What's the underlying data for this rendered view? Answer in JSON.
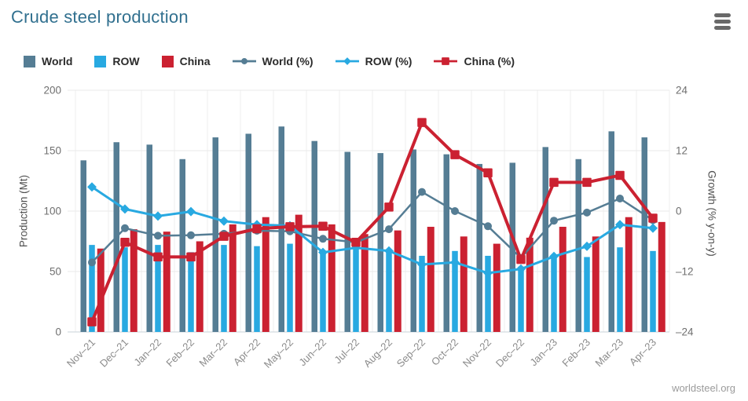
{
  "header": {
    "title": "Crude steel production"
  },
  "footer": {
    "source": "worldsteel.org"
  },
  "legend": [
    {
      "label": "World",
      "swatch": "square",
      "color": "#557d94"
    },
    {
      "label": "ROW",
      "swatch": "square",
      "color": "#28a9e1"
    },
    {
      "label": "China",
      "swatch": "square",
      "color": "#cb2131"
    },
    {
      "label": "World (%)",
      "swatch": "line-circle",
      "color": "#557d94"
    },
    {
      "label": "ROW (%)",
      "swatch": "line-diamond",
      "color": "#28a9e1"
    },
    {
      "label": "China (%)",
      "swatch": "line-square",
      "color": "#cb2131"
    }
  ],
  "chart_data": {
    "type": "bar",
    "subtype": "bar-line-combo",
    "title": "Crude steel production",
    "grid": true,
    "legend_position": "top",
    "categories": [
      "Nov–21",
      "Dec–21",
      "Jan–22",
      "Feb–22",
      "Mar–22",
      "Apr–22",
      "May–22",
      "Jun–22",
      "Jul–22",
      "Aug–22",
      "Sep–22",
      "Oct–22",
      "Nov–22",
      "Dec–22",
      "Jan–23",
      "Feb–23",
      "Mar–23",
      "Apr–23"
    ],
    "left_axis": {
      "label": "Production (Mt)",
      "min": 0,
      "max": 200,
      "ticks": [
        0,
        50,
        100,
        150,
        200
      ]
    },
    "right_axis": {
      "label": "Growth (% y-on-y)",
      "min": -24,
      "max": 24,
      "ticks": [
        -24,
        -12,
        0,
        12,
        24
      ]
    },
    "series": [
      {
        "name": "World",
        "type": "bar",
        "axis": "left",
        "color": "#557d94",
        "values": [
          142,
          157,
          155,
          143,
          161,
          164,
          170,
          158,
          149,
          148,
          151,
          147,
          139,
          140,
          153,
          143,
          166,
          161
        ]
      },
      {
        "name": "ROW",
        "type": "bar",
        "axis": "left",
        "color": "#28a9e1",
        "values": [
          72,
          70,
          72,
          66,
          72,
          71,
          73,
          65,
          68,
          66,
          63,
          67,
          63,
          54,
          64,
          62,
          70,
          67
        ]
      },
      {
        "name": "China",
        "type": "bar",
        "axis": "left",
        "color": "#cb2131",
        "values": [
          69,
          85,
          83,
          75,
          89,
          95,
          97,
          89,
          81,
          84,
          87,
          79,
          73,
          78,
          87,
          79,
          95,
          91
        ]
      },
      {
        "name": "World (%)",
        "type": "line",
        "marker": "circle",
        "axis": "right",
        "color": "#557d94",
        "values": [
          -10.2,
          -3.4,
          -4.9,
          -4.8,
          -4.5,
          -3.9,
          -4.0,
          -5.5,
          -6.2,
          -3.6,
          3.8,
          0.0,
          -3.0,
          -9.3,
          -1.9,
          -0.3,
          2.5,
          -1.8
        ]
      },
      {
        "name": "ROW (%)",
        "type": "line",
        "marker": "diamond",
        "axis": "right",
        "color": "#28a9e1",
        "values": [
          4.8,
          0.4,
          -1.0,
          -0.1,
          -2.0,
          -2.7,
          -2.9,
          -8.2,
          -7.3,
          -7.9,
          -10.6,
          -10.2,
          -12.3,
          -11.5,
          -9.0,
          -7.0,
          -2.7,
          -3.4
        ]
      },
      {
        "name": "China (%)",
        "type": "line",
        "marker": "square",
        "axis": "right",
        "color": "#cb2131",
        "values": [
          -22.0,
          -6.2,
          -9.1,
          -9.1,
          -5.0,
          -3.5,
          -3.1,
          -3.0,
          -6.2,
          0.8,
          17.6,
          11.2,
          7.6,
          -9.6,
          5.7,
          5.7,
          7.1,
          -1.4
        ]
      }
    ]
  }
}
